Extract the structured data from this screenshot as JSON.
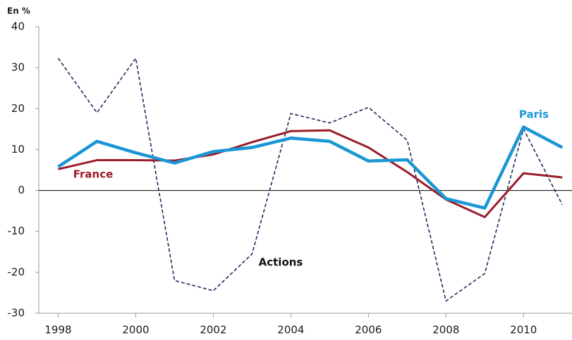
{
  "chart_data": {
    "type": "line",
    "ylabel": "En %",
    "x": [
      1998,
      1999,
      2000,
      2001,
      2002,
      2003,
      2004,
      2005,
      2006,
      2007,
      2008,
      2009,
      2010,
      2011
    ],
    "series": [
      {
        "name": "Actions",
        "color": "#1f2a5c",
        "dash": true,
        "values": [
          32.3,
          19,
          32.3,
          -22,
          -24.5,
          -15.5,
          18.8,
          16.5,
          20.3,
          12.3,
          -27,
          -20.3,
          15,
          -3.5
        ]
      },
      {
        "name": "France",
        "color": "#9b1c2a",
        "values": [
          5.2,
          7.4,
          7.4,
          7.3,
          8.8,
          11.8,
          14.5,
          14.7,
          10.5,
          4.5,
          -2.2,
          -6.5,
          4.2,
          3.2
        ]
      },
      {
        "name": "Paris",
        "color": "#1a96d4",
        "values": [
          5.8,
          12,
          9.2,
          6.7,
          9.5,
          10.5,
          12.8,
          12,
          7.2,
          7.5,
          -2,
          -4.3,
          15.5,
          10.5
        ]
      }
    ],
    "xlim": [
      1997.5,
      2011.25
    ],
    "xticks": [
      1998,
      2000,
      2002,
      2004,
      2006,
      2008,
      2010
    ],
    "ylim": [
      -30,
      40
    ],
    "yticks": [
      -30,
      -20,
      -10,
      0,
      10,
      20,
      30,
      40
    ],
    "grid": false
  }
}
